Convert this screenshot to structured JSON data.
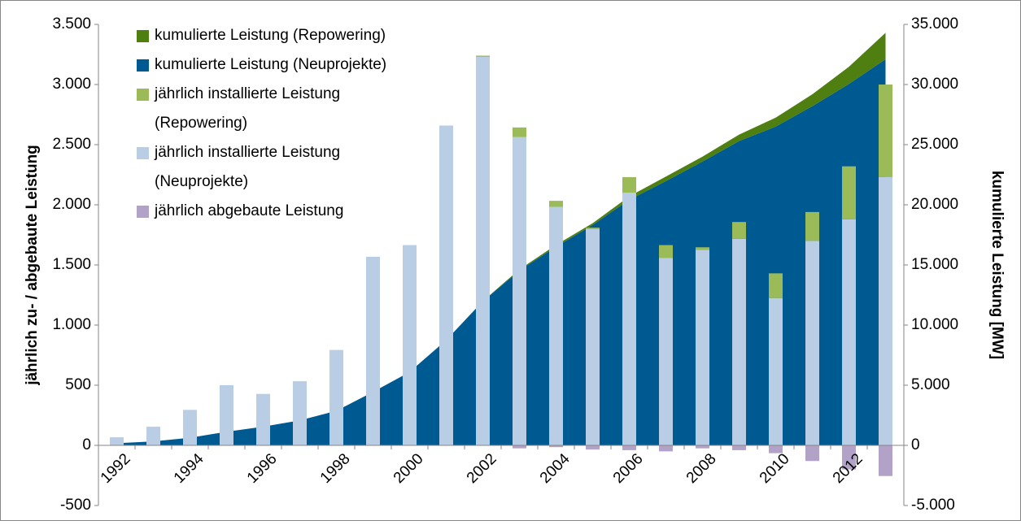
{
  "chart_data": {
    "type": "bar",
    "y_label": "jährlich zu- / abgebaute Leistung",
    "y2_label": "kumulierte Leistung [MW]",
    "categories": [
      "1992",
      null,
      "1994",
      null,
      "1996",
      null,
      "1998",
      null,
      "2000",
      null,
      "2002",
      null,
      "2004",
      null,
      "2006",
      null,
      "2008",
      null,
      "2010",
      null,
      "2012",
      null
    ],
    "ylim": [
      -500,
      3500
    ],
    "yticks": [
      -500,
      0,
      500,
      {
        "value": 1000,
        "label": "1.000"
      },
      {
        "value": 1500,
        "label": "1.500"
      },
      {
        "value": 2000,
        "label": "2.000"
      },
      {
        "value": 2500,
        "label": "2.500"
      },
      {
        "value": 3000,
        "label": "3.000"
      },
      {
        "value": 3500,
        "label": "3.500"
      }
    ],
    "y2lim": [
      -5000,
      35000
    ],
    "y2ticks": [
      {
        "value": -5000,
        "label": "-5.000"
      },
      0,
      {
        "value": 5000,
        "label": "5.000"
      },
      {
        "value": 10000,
        "label": "10.000"
      },
      {
        "value": 15000,
        "label": "15.000"
      },
      {
        "value": 20000,
        "label": "20.000"
      },
      {
        "value": 25000,
        "label": "25.000"
      },
      {
        "value": 30000,
        "label": "30.000"
      },
      {
        "value": 35000,
        "label": "35.000"
      }
    ],
    "legend": "top-left",
    "series": [
      {
        "name": "kumulierte Leistung (Repowering)",
        "type": "area",
        "axis": "y2",
        "color": "#4f7e11",
        "values": [
          0,
          0,
          0,
          0,
          0,
          0,
          0,
          0,
          0,
          0,
          10,
          90,
          140,
          150,
          280,
          380,
          400,
          540,
          745,
          985,
          1425,
          2195
        ]
      },
      {
        "name": "kumulierte Leistung (Neuprojekte)",
        "type": "area",
        "axis": "y2",
        "color": "#005a92",
        "values": [
          180,
          330,
          630,
          1130,
          1550,
          2080,
          2870,
          4440,
          6100,
          8750,
          11980,
          14540,
          16520,
          18320,
          20420,
          21970,
          23600,
          25300,
          26500,
          28200,
          30050,
          32100
        ]
      },
      {
        "name": "jährlich installierte Leistung (Repowering)",
        "type": "bar",
        "color": "#9bbb59",
        "values": [
          0,
          0,
          0,
          0,
          0,
          0,
          0,
          0,
          0,
          0,
          10,
          80,
          50,
          10,
          130,
          105,
          20,
          140,
          205,
          240,
          440,
          770
        ]
      },
      {
        "name": "jährlich installierte Leistung (Neuprojekte)",
        "type": "bar",
        "color": "#b9cde5",
        "values": [
          67,
          155,
          295,
          500,
          428,
          533,
          793,
          1568,
          1665,
          2659,
          3230,
          2563,
          1983,
          1800,
          2100,
          1560,
          1627,
          1717,
          1225,
          1700,
          1880,
          2230
        ]
      },
      {
        "name": "jährlich abgebaute Leistung",
        "type": "bar",
        "color": "#b3a2c7",
        "values": [
          0,
          0,
          0,
          0,
          0,
          0,
          0,
          0,
          0,
          0,
          0,
          -25,
          -15,
          -35,
          -40,
          -50,
          -25,
          -40,
          -65,
          -130,
          -200,
          -255
        ]
      }
    ]
  }
}
